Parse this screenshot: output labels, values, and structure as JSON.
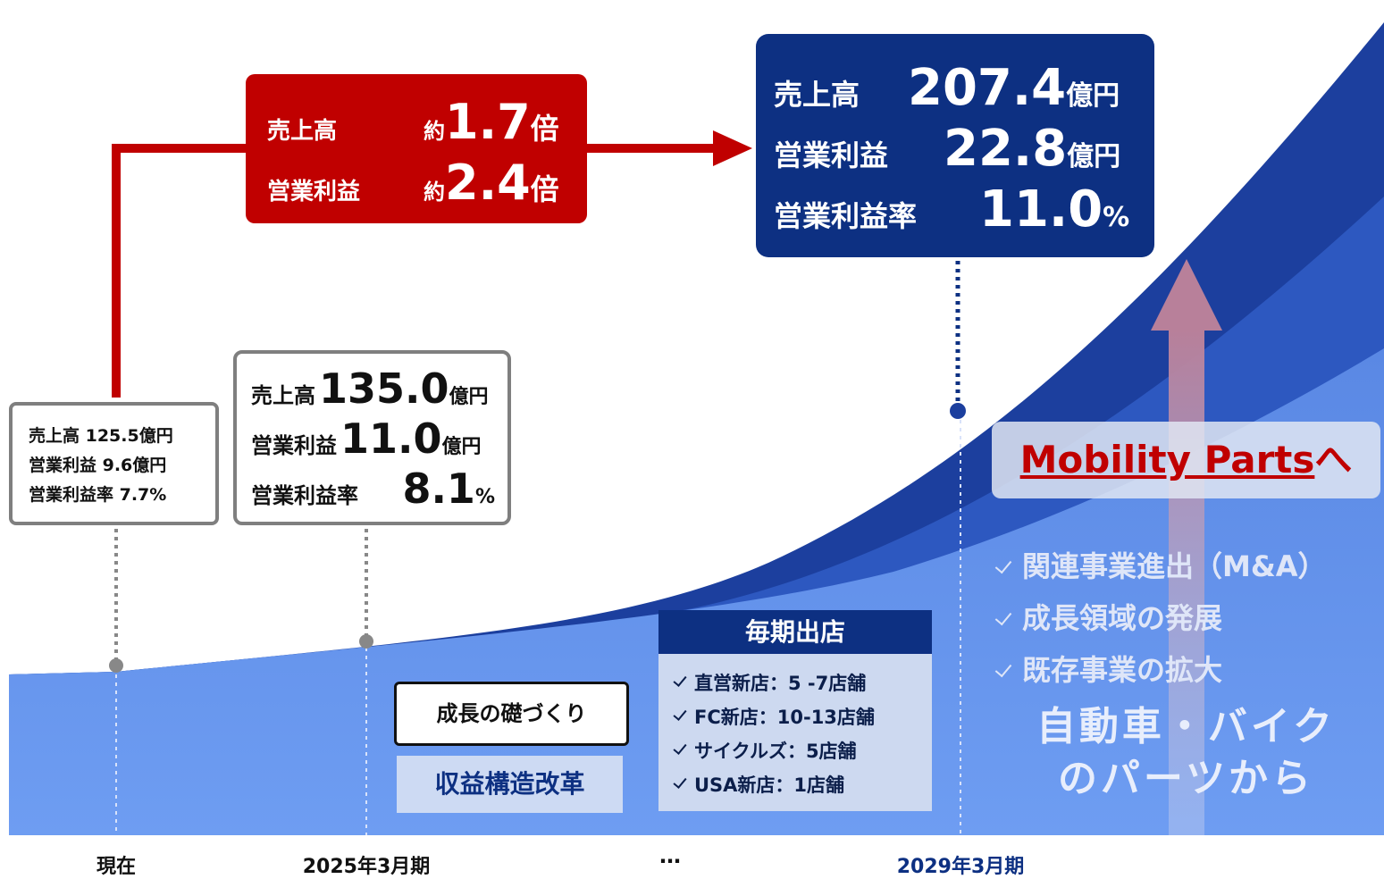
{
  "current": {
    "lines": [
      "売上高 125.5億円",
      "営業利益 9.6億円",
      "営業利益率 7.7%"
    ]
  },
  "fy2025": {
    "rows": [
      {
        "label": "売上高",
        "value": "135.0",
        "unit": "億円"
      },
      {
        "label": "営業利益",
        "value": "11.0",
        "unit": "億円"
      },
      {
        "label": "営業利益率",
        "value": "8.1",
        "unit": "%"
      }
    ]
  },
  "growth": {
    "rows": [
      {
        "label": "売上高",
        "prefix": "約",
        "value": "1.7",
        "unit": "倍"
      },
      {
        "label": "営業利益",
        "prefix": "約",
        "value": "2.4",
        "unit": "倍"
      }
    ]
  },
  "fy2029": {
    "rows": [
      {
        "label": "売上高",
        "value": "207.4",
        "unit": "億円"
      },
      {
        "label": "営業利益",
        "value": "22.8",
        "unit": "億円"
      },
      {
        "label": "営業利益率",
        "value": "11.0",
        "unit": "%"
      }
    ]
  },
  "mobility": {
    "highlight": "Mobility Parts",
    "suffix": "へ"
  },
  "initiatives": [
    "関連事業進出（M&A）",
    "成長領域の発展",
    "既存事業の拡大"
  ],
  "origin": [
    "自動車・バイク",
    "のパーツから"
  ],
  "stores": {
    "title": "毎期出店",
    "items": [
      "直営新店：5 -7店舗",
      "FC新店：10-13店舗",
      "サイクルズ：5店舗",
      "USA新店：1店舗"
    ]
  },
  "foundation": {
    "title": "成長の礎づくり",
    "subtitle": "収益構造改革"
  },
  "timeline": [
    "現在",
    "2025年3月期",
    "…",
    "2029年3月期"
  ]
}
